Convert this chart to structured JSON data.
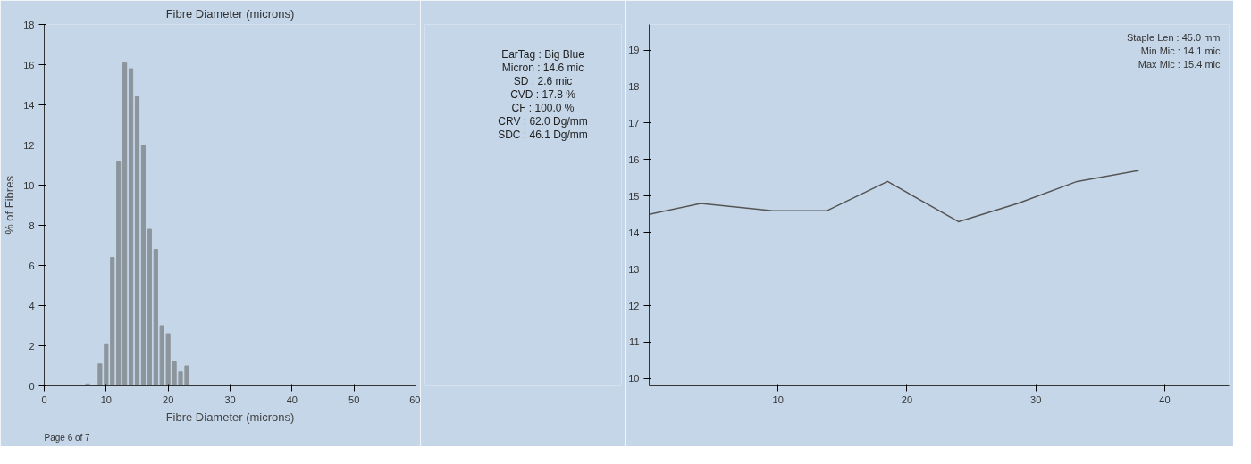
{
  "chart_data": [
    {
      "type": "histogram",
      "xlabel": "Fibre Diameter (microns)",
      "ylabel": "% of Fibres",
      "bins": [
        6.5,
        7.5,
        8.5,
        9.5,
        10.5,
        11.5,
        12.5,
        13.5,
        14.5,
        15.5,
        16.5,
        17.5,
        18.5,
        19.5,
        20.5,
        21.5,
        22.5,
        23.5
      ],
      "values": [
        0.1,
        0,
        1.1,
        2.1,
        6.4,
        11.2,
        16.1,
        15.8,
        14.4,
        12.0,
        7.8,
        6.8,
        3.0,
        2.6,
        1.2,
        0.7,
        1.0
      ],
      "color": "#8c959c",
      "xlim": [
        0,
        60
      ],
      "xticks": [
        0,
        10,
        20,
        30,
        40,
        50,
        60
      ],
      "ylim": [
        0,
        18
      ],
      "yticks": [
        0,
        2,
        4,
        6,
        8,
        10,
        12,
        14,
        16,
        18
      ],
      "annotations": [
        "Fibre Diameter (microns)",
        "Page 6 of 7"
      ]
    },
    {
      "type": "other",
      "annotations": [
        "EarTag : Big Blue",
        "Micron : 14.6 mic",
        "SD : 2.6 mic",
        "CVD : 17.8 %",
        "CF : 100.0 %",
        "CRV : 62.0 Dg/mm",
        "SDC : 46.1 Dg/mm"
      ]
    },
    {
      "type": "line",
      "x": [
        0,
        4,
        9.6,
        13.8,
        18.5,
        24,
        28.6,
        33.2,
        38
      ],
      "values": [
        14.5,
        14.8,
        14.6,
        14.6,
        15.4,
        14.3,
        14.8,
        15.4,
        15.7
      ],
      "color": "#555555",
      "xlim": [
        0,
        45
      ],
      "xticks": [
        10,
        20,
        30,
        40
      ],
      "ylim": [
        9.8,
        19.7
      ],
      "yticks": [
        10,
        11,
        12,
        13,
        14,
        15,
        16,
        17,
        18,
        19
      ],
      "annotations": [
        "Staple Len : 45.0 mm",
        "Min Mic : 14.1 mic",
        "Max Mic : 15.4 mic"
      ]
    }
  ]
}
